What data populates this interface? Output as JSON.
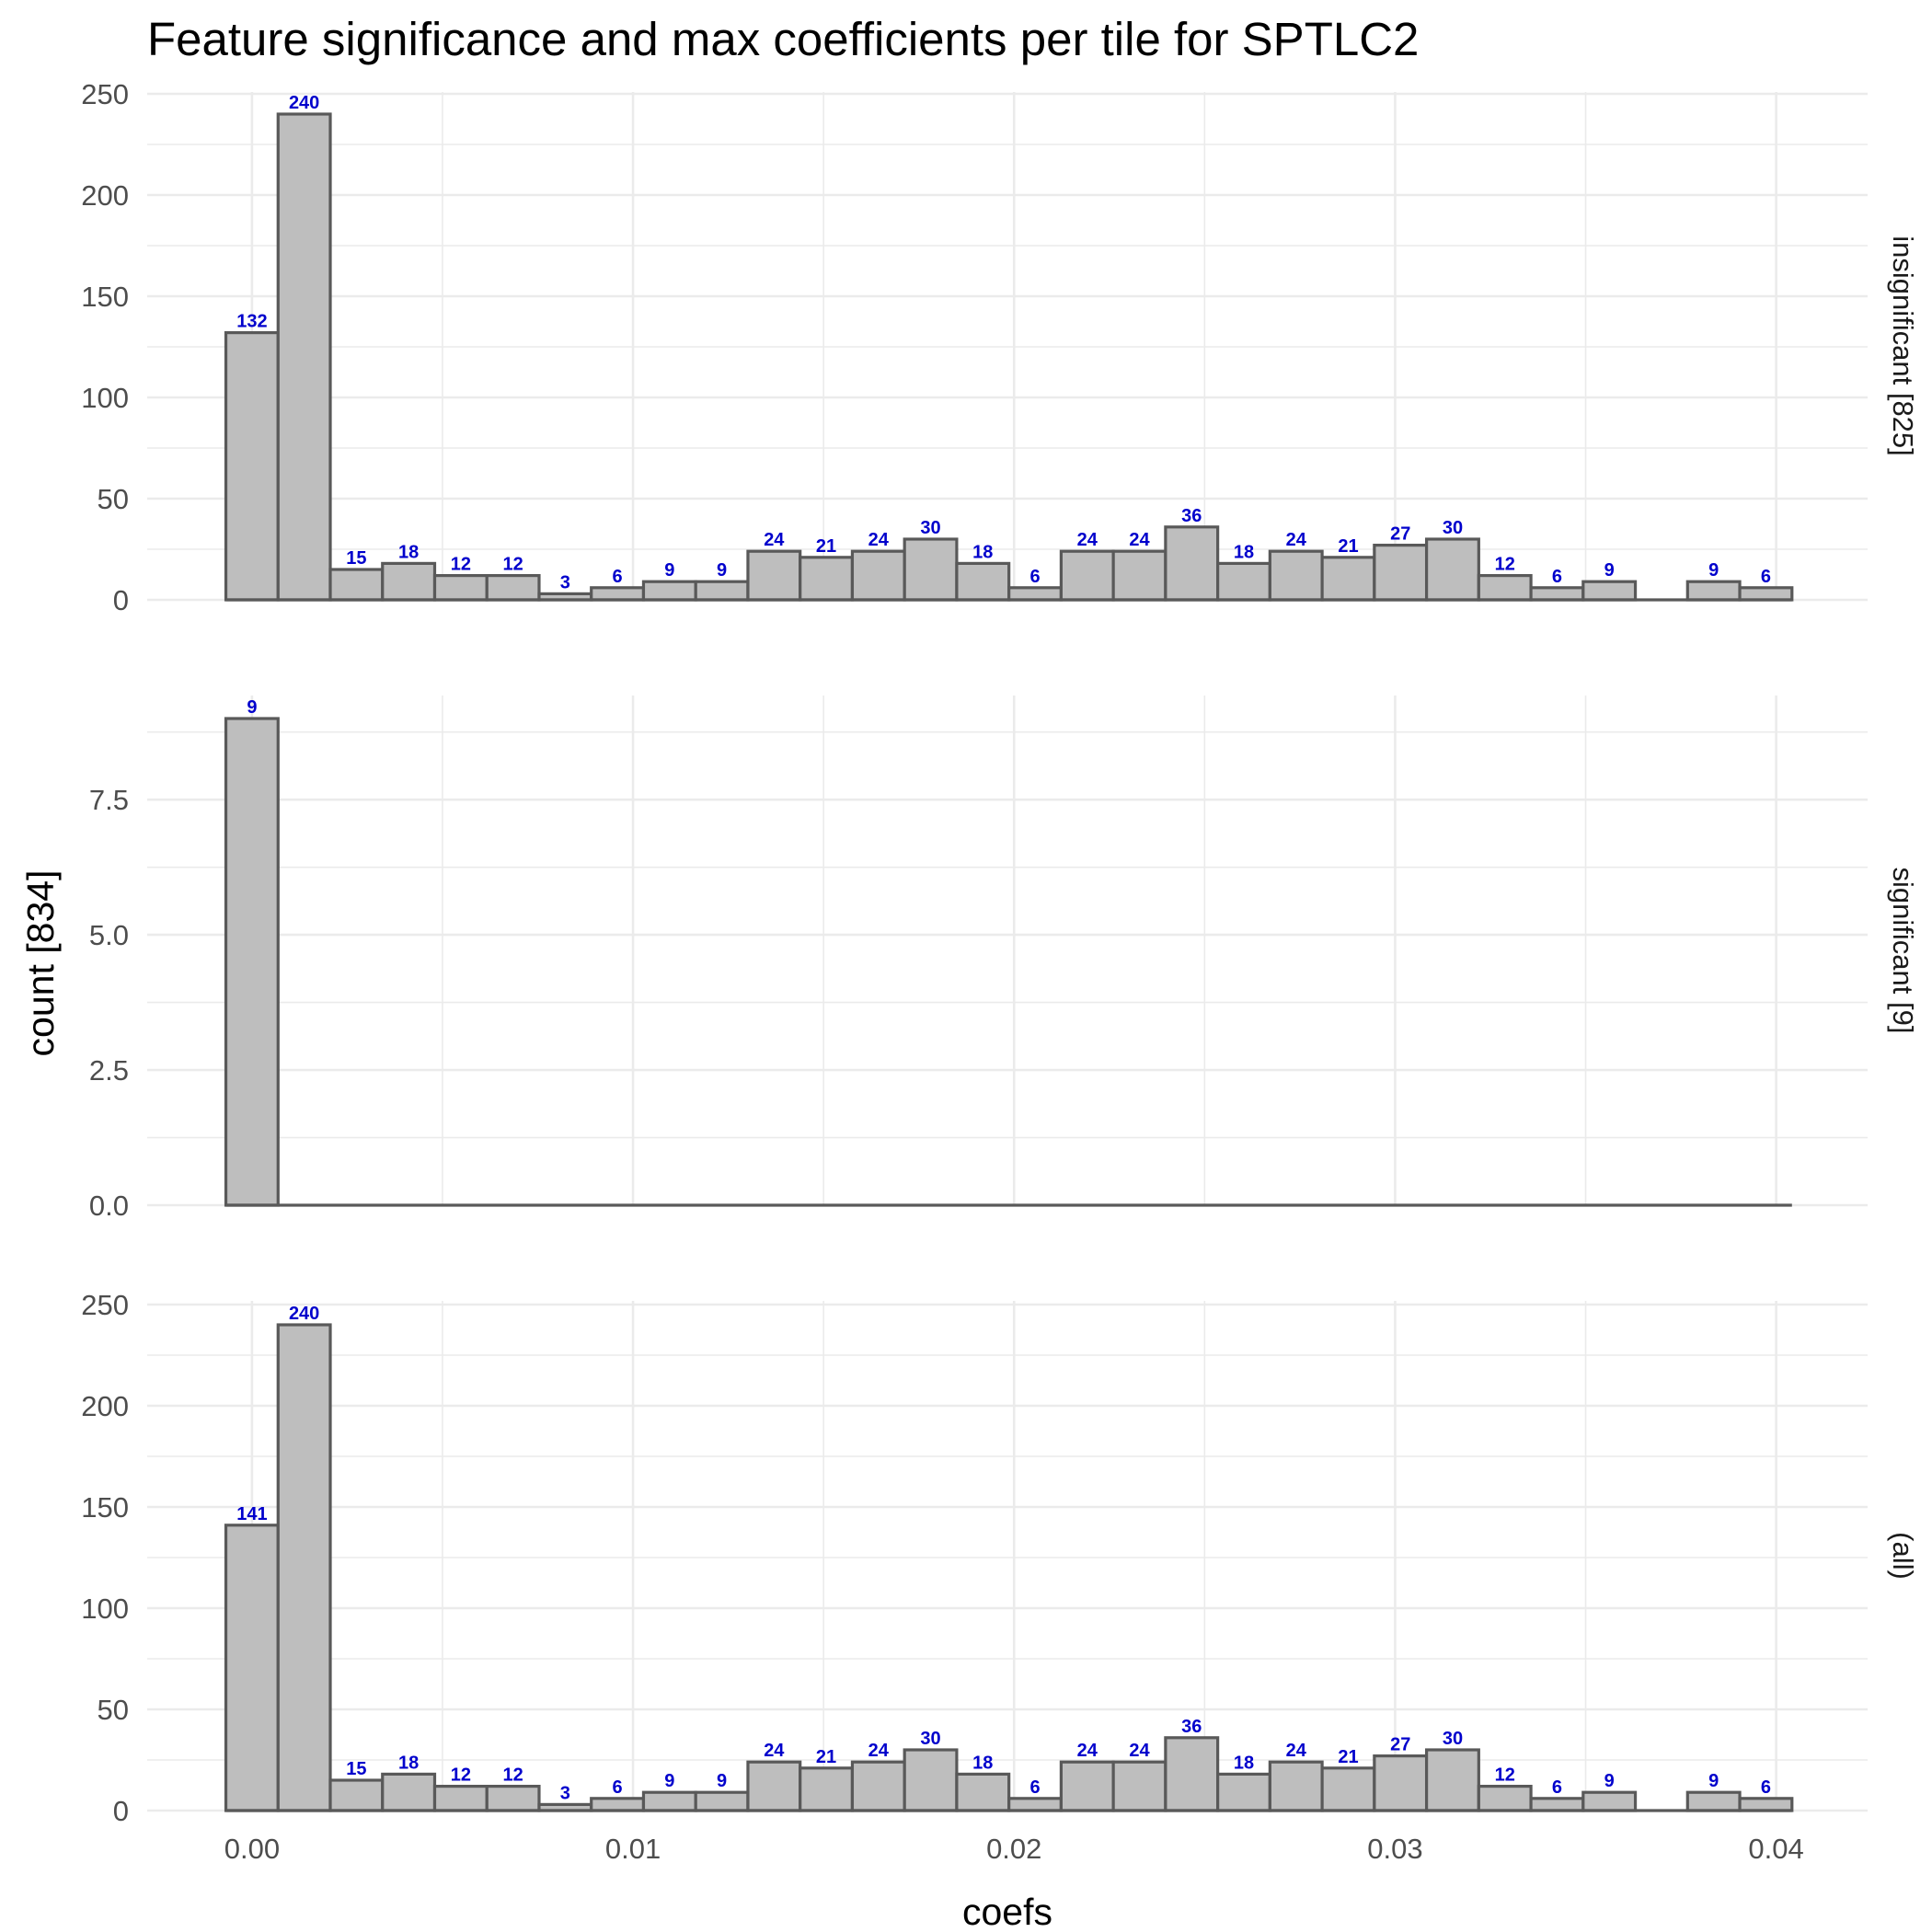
{
  "chart_data": {
    "type": "bar",
    "title": "Feature significance and max coefficients per tile for SPTLC2",
    "xlabel": "coefs",
    "ylabel": "count [834]",
    "x_ticks": [
      "0.00",
      "0.01",
      "0.02",
      "0.03",
      "0.04"
    ],
    "x_tick_values": [
      0.0,
      0.01,
      0.02,
      0.03,
      0.04
    ],
    "xlim": [
      -0.00275,
      0.0424
    ],
    "bin_width": 0.00137,
    "bin_centers": [
      0.0,
      0.00137,
      0.00274,
      0.00411,
      0.00548,
      0.00685,
      0.00822,
      0.00959,
      0.01096,
      0.01233,
      0.0137,
      0.01507,
      0.01644,
      0.01781,
      0.01918,
      0.02055,
      0.02192,
      0.02329,
      0.02466,
      0.02603,
      0.0274,
      0.02877,
      0.03014,
      0.03151,
      0.03288,
      0.03425,
      0.03562,
      0.03699,
      0.03836,
      0.03973
    ],
    "panels": [
      {
        "strip_label": "insignificant [825]",
        "ylim": [
          0,
          250
        ],
        "y_ticks": [
          "0",
          "50",
          "100",
          "150",
          "200",
          "250"
        ],
        "y_tick_values": [
          0,
          50,
          100,
          150,
          200,
          250
        ],
        "values": [
          132,
          240,
          15,
          18,
          12,
          12,
          3,
          6,
          9,
          9,
          24,
          21,
          24,
          30,
          18,
          6,
          24,
          24,
          36,
          18,
          24,
          21,
          27,
          30,
          12,
          6,
          9,
          0,
          9,
          6
        ]
      },
      {
        "strip_label": "significant [9]",
        "ylim": [
          0,
          9
        ],
        "y_ticks": [
          "0.0",
          "2.5",
          "5.0",
          "7.5"
        ],
        "y_tick_values": [
          0,
          2.5,
          5.0,
          7.5
        ],
        "values": [
          9,
          0,
          0,
          0,
          0,
          0,
          0,
          0,
          0,
          0,
          0,
          0,
          0,
          0,
          0,
          0,
          0,
          0,
          0,
          0,
          0,
          0,
          0,
          0,
          0,
          0,
          0,
          0,
          0,
          0
        ]
      },
      {
        "strip_label": "(all)",
        "ylim": [
          0,
          250
        ],
        "y_ticks": [
          "0",
          "50",
          "100",
          "150",
          "200",
          "250"
        ],
        "y_tick_values": [
          0,
          50,
          100,
          150,
          200,
          250
        ],
        "values": [
          141,
          240,
          15,
          18,
          12,
          12,
          3,
          6,
          9,
          9,
          24,
          21,
          24,
          30,
          18,
          6,
          24,
          24,
          36,
          18,
          24,
          21,
          27,
          30,
          12,
          6,
          9,
          0,
          9,
          6
        ]
      }
    ],
    "bar_fill": "#bebebe",
    "bar_outline": "#595959",
    "label_color": "#0000cc",
    "grid": true,
    "legend": "none"
  }
}
